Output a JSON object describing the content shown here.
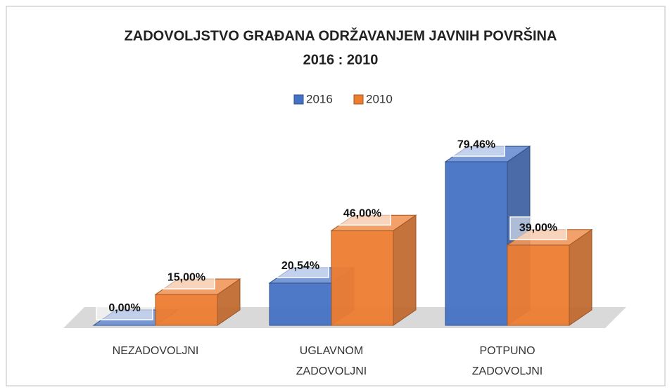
{
  "chart_data": {
    "type": "bar3d",
    "title": [
      "ZADOVOLJSTVO GRAĐANA ODRŽAVANJEM JAVNIH POVRŠINA",
      "2016 : 2010"
    ],
    "categories": [
      "NEZADOVOLJNI",
      "UGLAVNOM ZADOVOLJNI",
      "POTPUNO ZADOVOLJNI"
    ],
    "series": [
      {
        "name": "2016",
        "color": "#4472c4",
        "values": [
          0,
          20.54,
          79.46
        ],
        "value_labels": [
          "0,00%",
          "20,54%",
          "79,46%"
        ]
      },
      {
        "name": "2010",
        "color": "#ed7d31",
        "values": [
          15,
          46,
          39
        ],
        "value_labels": [
          "15,00%",
          "46,00%",
          "39,00%"
        ]
      }
    ],
    "legend": "top"
  }
}
